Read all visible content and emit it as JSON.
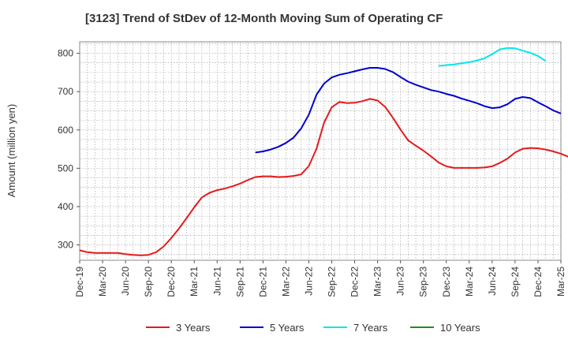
{
  "chart_data": {
    "type": "line",
    "title": "[3123]  Trend of StDev of 12-Month Moving Sum of Operating CF",
    "xlabel": "",
    "ylabel": "Amount (million yen)",
    "ylim": [
      260,
      830
    ],
    "yticks": [
      300,
      400,
      500,
      600,
      700,
      800
    ],
    "grid": true,
    "legend_position": "bottom",
    "x_start": "Dec-19",
    "x_end": "Mar-25",
    "x_ticks": [
      "Dec-19",
      "Mar-20",
      "Jun-20",
      "Sep-20",
      "Dec-20",
      "Mar-21",
      "Jun-21",
      "Sep-21",
      "Dec-21",
      "Mar-22",
      "Jun-22",
      "Sep-22",
      "Dec-22",
      "Mar-23",
      "Jun-23",
      "Sep-23",
      "Dec-23",
      "Mar-24",
      "Jun-24",
      "Sep-24",
      "Dec-24",
      "Mar-25"
    ],
    "series": [
      {
        "name": "3 Years",
        "color": "#e41a1c",
        "start": "Dec-19",
        "values": [
          286,
          281,
          279,
          279,
          279,
          279,
          276,
          274,
          273,
          274,
          281,
          296,
          318,
          343,
          370,
          398,
          424,
          436,
          443,
          447,
          453,
          460,
          469,
          477,
          479,
          479,
          477,
          478,
          480,
          484,
          506,
          551,
          619,
          659,
          673,
          670,
          671,
          675,
          681,
          677,
          660,
          632,
          601,
          573,
          559,
          546,
          531,
          515,
          505,
          501,
          501,
          501,
          501,
          502,
          505,
          514,
          525,
          541,
          551,
          553,
          552,
          549,
          544,
          538,
          530
        ]
      },
      {
        "name": "5 Years",
        "color": "#0000cd",
        "start": "Nov-21",
        "values": [
          541,
          544,
          549,
          556,
          566,
          580,
          604,
          640,
          692,
          721,
          737,
          744,
          748,
          753,
          758,
          762,
          762,
          759,
          751,
          738,
          726,
          718,
          711,
          704,
          700,
          694,
          689,
          682,
          676,
          670,
          662,
          657,
          659,
          667,
          681,
          686,
          683,
          672,
          662,
          651,
          643
        ]
      },
      {
        "name": "7 Years",
        "color": "#00e5ee",
        "start": "Nov-23",
        "values": [
          767,
          769,
          771,
          774,
          777,
          781,
          787,
          798,
          810,
          814,
          813,
          807,
          801,
          793,
          780
        ]
      },
      {
        "name": "10 Years",
        "color": "#228b22",
        "start": "Dec-24",
        "values": []
      }
    ]
  }
}
